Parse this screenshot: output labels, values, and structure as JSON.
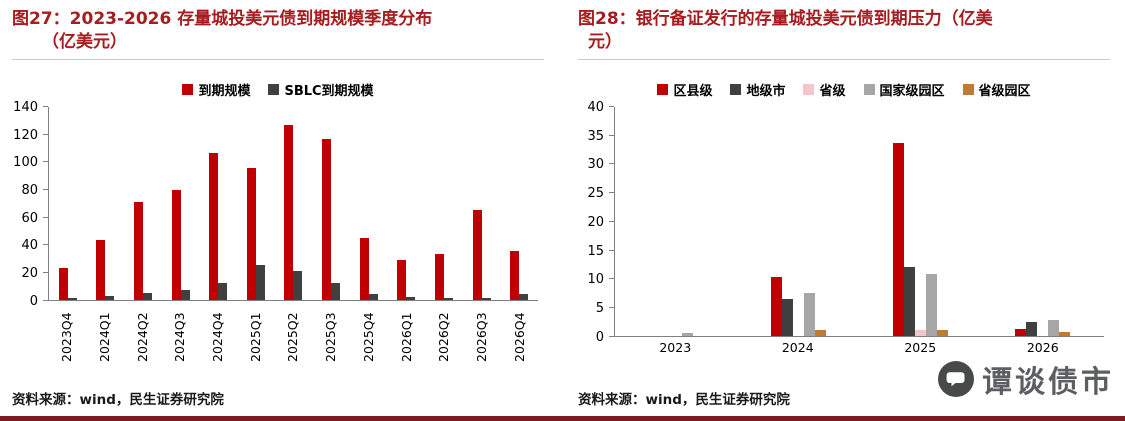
{
  "left_panel": {
    "title_line1": "图27：2023-2026 存量城投美元债到期规模季度分布",
    "title_line2": "（亿美元）",
    "source": "资料来源：wind，民生证券研究院"
  },
  "right_panel": {
    "title_line1": "图28：银行备证发行的存量城投美元债到期压力（亿美",
    "title_line2": "元）",
    "source": "资料来源：wind，民生证券研究院"
  },
  "watermark": {
    "text": "谭谈债市"
  },
  "chart_data": [
    {
      "type": "bar",
      "title": "图27：2023-2026 存量城投美元债到期规模季度分布（亿美元）",
      "xlabel": "",
      "ylabel": "",
      "categories": [
        "2023Q4",
        "2024Q1",
        "2024Q2",
        "2024Q3",
        "2024Q4",
        "2025Q1",
        "2025Q2",
        "2025Q3",
        "2025Q4",
        "2026Q1",
        "2026Q2",
        "2026Q3",
        "2026Q4"
      ],
      "series": [
        {
          "name": "到期规模",
          "color": "#C00000",
          "values": [
            23,
            43,
            71,
            79,
            106,
            95,
            126,
            116,
            45,
            29,
            33,
            65,
            35
          ]
        },
        {
          "name": "SBLC到期规模",
          "color": "#404040",
          "values": [
            1,
            3,
            5,
            7,
            12,
            25,
            21,
            12,
            4,
            2,
            1,
            1,
            4
          ]
        }
      ],
      "ylim": [
        0,
        140
      ],
      "ytick_step": 20,
      "legend_position": "top",
      "grid": false
    },
    {
      "type": "bar",
      "title": "图28：银行备证发行的存量城投美元债到期压力（亿美元）",
      "xlabel": "",
      "ylabel": "",
      "categories": [
        "2023",
        "2024",
        "2025",
        "2026"
      ],
      "series": [
        {
          "name": "区县级",
          "color": "#C00000",
          "values": [
            0,
            10.3,
            33.5,
            1.2
          ]
        },
        {
          "name": "地级市",
          "color": "#404040",
          "values": [
            0,
            6.4,
            12,
            2.5
          ]
        },
        {
          "name": "省级",
          "color": "#F2C6CC",
          "values": [
            0,
            0,
            1,
            0
          ]
        },
        {
          "name": "国家级园区",
          "color": "#A6A6A6",
          "values": [
            0.5,
            7.4,
            10.7,
            2.8
          ]
        },
        {
          "name": "省级园区",
          "color": "#C07B33",
          "values": [
            0,
            1,
            1,
            0.7
          ]
        }
      ],
      "ylim": [
        0,
        40
      ],
      "ytick_step": 5,
      "legend_position": "top",
      "grid": false
    }
  ]
}
